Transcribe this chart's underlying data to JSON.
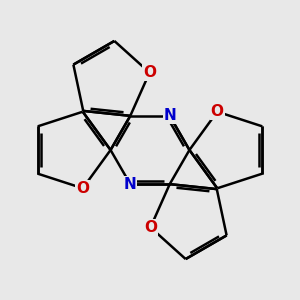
{
  "bg_color": "#e8e8e8",
  "bond_color": "#000000",
  "N_color": "#0000cc",
  "O_color": "#cc0000",
  "bond_width": 1.8,
  "dbo": 0.055,
  "font_size": 11,
  "xlim": [
    -2.8,
    2.8
  ],
  "ylim": [
    -2.8,
    2.8
  ]
}
